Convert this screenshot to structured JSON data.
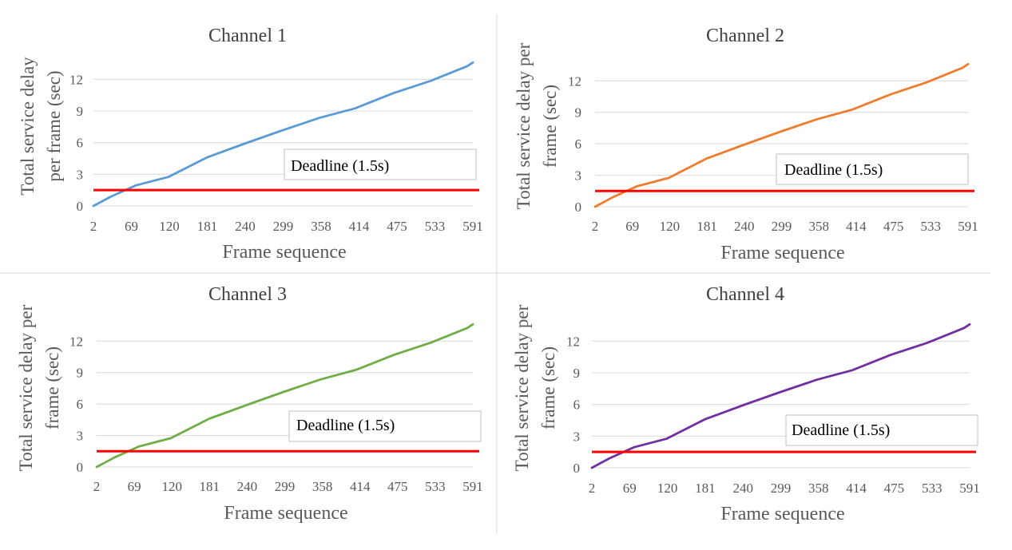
{
  "chart_data": [
    {
      "type": "line",
      "title": "Channel 1",
      "ylabel_lines": [
        "Total service delay",
        "per frame (sec)"
      ],
      "xlabel": "Frame sequence",
      "x_tick_labels": [
        "2",
        "69",
        "120",
        "181",
        "240",
        "299",
        "358",
        "414",
        "475",
        "533",
        "591"
      ],
      "y_ticks": [
        0,
        3,
        6,
        9,
        12
      ],
      "ylim": [
        0,
        14
      ],
      "xlim": [
        2,
        600
      ],
      "series": [
        {
          "color": "#5b9bd5",
          "x": [
            2,
            30,
            69,
            120,
            181,
            240,
            299,
            358,
            414,
            475,
            533,
            591,
            600
          ],
          "y": [
            0.0,
            0.9,
            1.95,
            2.75,
            4.6,
            5.9,
            7.15,
            8.35,
            9.25,
            10.7,
            11.85,
            13.25,
            13.6
          ]
        }
      ],
      "deadline": {
        "value": 1.5,
        "color": "#ff0000",
        "label": "Deadline (1.5s)"
      }
    },
    {
      "type": "line",
      "title": "Channel 2",
      "ylabel_lines": [
        "Total service delay per",
        "frame (sec)"
      ],
      "xlabel": "Frame sequence",
      "x_tick_labels": [
        "2",
        "69",
        "120",
        "181",
        "240",
        "299",
        "358",
        "414",
        "475",
        "533",
        "591"
      ],
      "y_ticks": [
        0,
        3,
        6,
        9,
        12
      ],
      "ylim": [
        0,
        14
      ],
      "xlim": [
        2,
        600
      ],
      "series": [
        {
          "color": "#ed7d31",
          "x": [
            2,
            30,
            69,
            120,
            181,
            240,
            299,
            358,
            414,
            475,
            533,
            591,
            600
          ],
          "y": [
            0.0,
            0.9,
            1.95,
            2.75,
            4.6,
            5.9,
            7.15,
            8.35,
            9.25,
            10.7,
            11.85,
            13.25,
            13.6
          ]
        }
      ],
      "deadline": {
        "value": 1.5,
        "color": "#ff0000",
        "label": "Deadline (1.5s)"
      }
    },
    {
      "type": "line",
      "title": "Channel 3",
      "ylabel_lines": [
        "Total service delay per",
        "frame (sec)"
      ],
      "xlabel": "Frame sequence",
      "x_tick_labels": [
        "2",
        "69",
        "120",
        "181",
        "240",
        "299",
        "358",
        "414",
        "475",
        "533",
        "591"
      ],
      "y_ticks": [
        0,
        3,
        6,
        9,
        12
      ],
      "ylim": [
        0,
        14
      ],
      "xlim": [
        2,
        600
      ],
      "series": [
        {
          "color": "#70ad47",
          "x": [
            2,
            30,
            69,
            120,
            181,
            240,
            299,
            358,
            414,
            475,
            533,
            591,
            600
          ],
          "y": [
            0.0,
            0.9,
            1.95,
            2.75,
            4.6,
            5.9,
            7.15,
            8.35,
            9.25,
            10.7,
            11.85,
            13.25,
            13.6
          ]
        }
      ],
      "deadline": {
        "value": 1.5,
        "color": "#ff0000",
        "label": "Deadline (1.5s)"
      }
    },
    {
      "type": "line",
      "title": "Channel 4",
      "ylabel_lines": [
        "Total service delay per",
        "frame (sec)"
      ],
      "xlabel": "Frame sequence",
      "x_tick_labels": [
        "2",
        "69",
        "120",
        "181",
        "240",
        "299",
        "358",
        "414",
        "475",
        "533",
        "591"
      ],
      "y_ticks": [
        0,
        3,
        6,
        9,
        12
      ],
      "ylim": [
        0,
        14
      ],
      "xlim": [
        2,
        600
      ],
      "series": [
        {
          "color": "#7030a0",
          "x": [
            2,
            30,
            69,
            120,
            181,
            240,
            299,
            358,
            414,
            475,
            533,
            591,
            600
          ],
          "y": [
            0.0,
            0.9,
            1.95,
            2.75,
            4.6,
            5.9,
            7.15,
            8.35,
            9.25,
            10.7,
            11.85,
            13.25,
            13.6
          ]
        }
      ],
      "deadline": {
        "value": 1.5,
        "color": "#ff0000",
        "label": "Deadline (1.5s)"
      }
    }
  ]
}
